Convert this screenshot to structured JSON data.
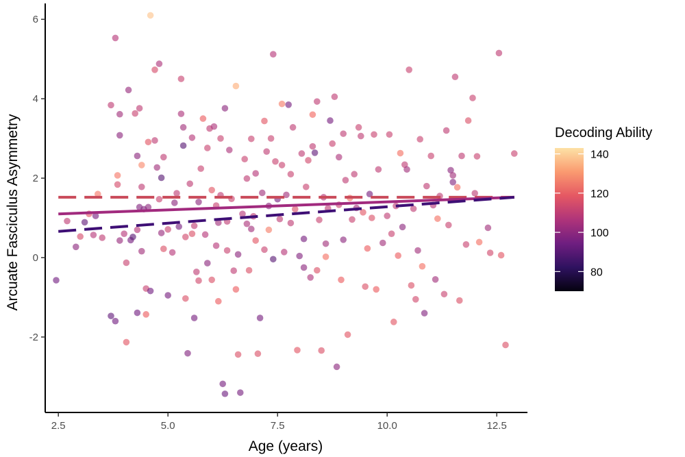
{
  "chart_data": {
    "type": "scatter",
    "xlabel": "Age (years)",
    "ylabel": "Arcuate Fasciculus Asymmetry",
    "xlim": [
      2.2,
      13.2
    ],
    "ylim": [
      -3.9,
      6.4
    ],
    "x_ticks": [
      2.5,
      5.0,
      7.5,
      10.0,
      12.5
    ],
    "x_tick_labels": [
      "2.5",
      "5.0",
      "7.5",
      "10.0",
      "12.5"
    ],
    "y_ticks": [
      -2,
      0,
      2,
      4,
      6
    ],
    "y_tick_labels": [
      "-2",
      "0",
      "2",
      "4",
      "6"
    ],
    "grid": false,
    "legend": {
      "title": "Decoding Ability",
      "placement": "right",
      "range": [
        70,
        143
      ],
      "ticks": [
        80,
        100,
        120,
        140
      ],
      "tick_labels": [
        "80",
        "100",
        "120",
        "140"
      ]
    },
    "colors": {
      "colormap": [
        "#000004",
        "#2c115f",
        "#721f81",
        "#b73779",
        "#f1605d",
        "#feb078",
        "#fcfdbf"
      ],
      "line_solid": "#a12a7e",
      "line_dashed_high": "#c94a5a",
      "line_dashed_low": "#3e0f75"
    },
    "lines": [
      {
        "style": "dashed",
        "x": [
          2.5,
          12.9
        ],
        "y": [
          1.52,
          1.52
        ],
        "color_value": 120
      },
      {
        "style": "solid",
        "x": [
          2.5,
          12.9
        ],
        "y": [
          1.1,
          1.52
        ],
        "color_value": 105
      },
      {
        "style": "dashed",
        "x": [
          2.5,
          12.9
        ],
        "y": [
          0.66,
          1.52
        ],
        "color_value": 90
      }
    ],
    "points": [
      {
        "x": 2.45,
        "y": -0.57,
        "v": 95
      },
      {
        "x": 2.7,
        "y": 0.92,
        "v": 110
      },
      {
        "x": 2.9,
        "y": 0.27,
        "v": 100
      },
      {
        "x": 3.0,
        "y": 0.53,
        "v": 115
      },
      {
        "x": 3.1,
        "y": 0.89,
        "v": 92
      },
      {
        "x": 3.2,
        "y": 1.1,
        "v": 118
      },
      {
        "x": 3.3,
        "y": 0.57,
        "v": 108
      },
      {
        "x": 3.35,
        "y": 1.05,
        "v": 96
      },
      {
        "x": 3.4,
        "y": 1.6,
        "v": 125
      },
      {
        "x": 3.5,
        "y": 0.5,
        "v": 110
      },
      {
        "x": 3.7,
        "y": -1.47,
        "v": 92
      },
      {
        "x": 3.7,
        "y": 3.84,
        "v": 110
      },
      {
        "x": 3.8,
        "y": 5.53,
        "v": 108
      },
      {
        "x": 3.8,
        "y": -1.6,
        "v": 95
      },
      {
        "x": 3.85,
        "y": 2.07,
        "v": 125
      },
      {
        "x": 3.85,
        "y": 1.84,
        "v": 115
      },
      {
        "x": 3.9,
        "y": 3.61,
        "v": 104
      },
      {
        "x": 3.9,
        "y": 0.43,
        "v": 102
      },
      {
        "x": 3.9,
        "y": 3.08,
        "v": 100
      },
      {
        "x": 4.0,
        "y": 0.6,
        "v": 108
      },
      {
        "x": 4.05,
        "y": -2.13,
        "v": 118
      },
      {
        "x": 4.05,
        "y": -0.13,
        "v": 112
      },
      {
        "x": 4.1,
        "y": 4.22,
        "v": 102
      },
      {
        "x": 4.15,
        "y": 0.44,
        "v": 96
      },
      {
        "x": 4.2,
        "y": 0.52,
        "v": 90
      },
      {
        "x": 4.25,
        "y": 3.63,
        "v": 112
      },
      {
        "x": 4.3,
        "y": -1.39,
        "v": 95
      },
      {
        "x": 4.3,
        "y": 2.56,
        "v": 100
      },
      {
        "x": 4.3,
        "y": 0.7,
        "v": 108
      },
      {
        "x": 4.35,
        "y": 3.76,
        "v": 110
      },
      {
        "x": 4.35,
        "y": 1.27,
        "v": 98
      },
      {
        "x": 4.4,
        "y": 2.33,
        "v": 128
      },
      {
        "x": 4.4,
        "y": 0.16,
        "v": 104
      },
      {
        "x": 4.4,
        "y": 1.78,
        "v": 110
      },
      {
        "x": 4.45,
        "y": 1.22,
        "v": 98
      },
      {
        "x": 4.5,
        "y": -0.78,
        "v": 112
      },
      {
        "x": 4.5,
        "y": -1.43,
        "v": 120
      },
      {
        "x": 4.55,
        "y": 2.91,
        "v": 118
      },
      {
        "x": 4.55,
        "y": 1.27,
        "v": 100
      },
      {
        "x": 4.6,
        "y": -0.84,
        "v": 95
      },
      {
        "x": 4.6,
        "y": 6.1,
        "v": 138
      },
      {
        "x": 4.7,
        "y": 2.95,
        "v": 110
      },
      {
        "x": 4.7,
        "y": 4.73,
        "v": 115
      },
      {
        "x": 4.75,
        "y": 2.27,
        "v": 104
      },
      {
        "x": 4.8,
        "y": 4.88,
        "v": 106
      },
      {
        "x": 4.8,
        "y": 1.47,
        "v": 112
      },
      {
        "x": 4.85,
        "y": 2.01,
        "v": 90
      },
      {
        "x": 4.85,
        "y": 0.62,
        "v": 102
      },
      {
        "x": 4.9,
        "y": 0.22,
        "v": 116
      },
      {
        "x": 4.9,
        "y": 2.53,
        "v": 110
      },
      {
        "x": 5.0,
        "y": 0.71,
        "v": 112
      },
      {
        "x": 5.0,
        "y": -0.95,
        "v": 96
      },
      {
        "x": 5.1,
        "y": 0.13,
        "v": 108
      },
      {
        "x": 5.15,
        "y": 1.38,
        "v": 100
      },
      {
        "x": 5.2,
        "y": 1.62,
        "v": 110
      },
      {
        "x": 5.25,
        "y": 0.78,
        "v": 96
      },
      {
        "x": 5.3,
        "y": 4.5,
        "v": 112
      },
      {
        "x": 5.3,
        "y": 3.62,
        "v": 106
      },
      {
        "x": 5.35,
        "y": 3.28,
        "v": 104
      },
      {
        "x": 5.35,
        "y": 2.82,
        "v": 90
      },
      {
        "x": 5.4,
        "y": 0.52,
        "v": 114
      },
      {
        "x": 5.4,
        "y": -1.03,
        "v": 116
      },
      {
        "x": 5.45,
        "y": -2.41,
        "v": 98
      },
      {
        "x": 5.5,
        "y": 1.86,
        "v": 110
      },
      {
        "x": 5.55,
        "y": 3.02,
        "v": 108
      },
      {
        "x": 5.55,
        "y": 0.6,
        "v": 116
      },
      {
        "x": 5.6,
        "y": 0.8,
        "v": 110
      },
      {
        "x": 5.6,
        "y": -1.52,
        "v": 96
      },
      {
        "x": 5.65,
        "y": -0.36,
        "v": 110
      },
      {
        "x": 5.7,
        "y": 1.4,
        "v": 100
      },
      {
        "x": 5.7,
        "y": -0.58,
        "v": 114
      },
      {
        "x": 5.75,
        "y": 2.24,
        "v": 112
      },
      {
        "x": 5.8,
        "y": 3.5,
        "v": 120
      },
      {
        "x": 5.85,
        "y": 0.58,
        "v": 108
      },
      {
        "x": 5.9,
        "y": -0.14,
        "v": 100
      },
      {
        "x": 5.9,
        "y": 2.76,
        "v": 112
      },
      {
        "x": 5.95,
        "y": 3.25,
        "v": 110
      },
      {
        "x": 6.0,
        "y": 1.7,
        "v": 118
      },
      {
        "x": 6.0,
        "y": -0.56,
        "v": 116
      },
      {
        "x": 6.05,
        "y": 3.3,
        "v": 106
      },
      {
        "x": 6.1,
        "y": 1.31,
        "v": 112
      },
      {
        "x": 6.1,
        "y": 0.3,
        "v": 108
      },
      {
        "x": 6.15,
        "y": 0.88,
        "v": 104
      },
      {
        "x": 6.15,
        "y": -1.1,
        "v": 120
      },
      {
        "x": 6.2,
        "y": 1.57,
        "v": 110
      },
      {
        "x": 6.2,
        "y": 3.0,
        "v": 112
      },
      {
        "x": 6.25,
        "y": -3.18,
        "v": 96
      },
      {
        "x": 6.3,
        "y": -3.43,
        "v": 94
      },
      {
        "x": 6.3,
        "y": 3.76,
        "v": 100
      },
      {
        "x": 6.35,
        "y": 0.91,
        "v": 110
      },
      {
        "x": 6.35,
        "y": 0.18,
        "v": 112
      },
      {
        "x": 6.4,
        "y": 2.71,
        "v": 106
      },
      {
        "x": 6.45,
        "y": 1.48,
        "v": 112
      },
      {
        "x": 6.5,
        "y": -0.33,
        "v": 110
      },
      {
        "x": 6.55,
        "y": 4.32,
        "v": 134
      },
      {
        "x": 6.55,
        "y": -0.8,
        "v": 120
      },
      {
        "x": 6.6,
        "y": 0.08,
        "v": 100
      },
      {
        "x": 6.6,
        "y": -2.44,
        "v": 116
      },
      {
        "x": 6.65,
        "y": -3.4,
        "v": 96
      },
      {
        "x": 6.7,
        "y": 1.1,
        "v": 108
      },
      {
        "x": 6.75,
        "y": 2.48,
        "v": 112
      },
      {
        "x": 6.8,
        "y": 0.85,
        "v": 106
      },
      {
        "x": 6.8,
        "y": 1.99,
        "v": 110
      },
      {
        "x": 6.85,
        "y": -0.32,
        "v": 116
      },
      {
        "x": 6.9,
        "y": 0.72,
        "v": 104
      },
      {
        "x": 6.9,
        "y": 2.99,
        "v": 112
      },
      {
        "x": 6.95,
        "y": 1.04,
        "v": 110
      },
      {
        "x": 7.0,
        "y": 2.12,
        "v": 108
      },
      {
        "x": 7.0,
        "y": 0.43,
        "v": 118
      },
      {
        "x": 7.05,
        "y": -2.42,
        "v": 116
      },
      {
        "x": 7.1,
        "y": -1.52,
        "v": 96
      },
      {
        "x": 7.15,
        "y": 1.63,
        "v": 104
      },
      {
        "x": 7.2,
        "y": 3.44,
        "v": 118
      },
      {
        "x": 7.2,
        "y": 0.2,
        "v": 112
      },
      {
        "x": 7.25,
        "y": 2.67,
        "v": 110
      },
      {
        "x": 7.3,
        "y": 1.3,
        "v": 100
      },
      {
        "x": 7.3,
        "y": 0.7,
        "v": 126
      },
      {
        "x": 7.35,
        "y": 3.0,
        "v": 112
      },
      {
        "x": 7.4,
        "y": -0.04,
        "v": 90
      },
      {
        "x": 7.4,
        "y": 5.12,
        "v": 108
      },
      {
        "x": 7.45,
        "y": 2.42,
        "v": 112
      },
      {
        "x": 7.5,
        "y": 1.47,
        "v": 96
      },
      {
        "x": 7.55,
        "y": 0.97,
        "v": 110
      },
      {
        "x": 7.6,
        "y": 3.87,
        "v": 126
      },
      {
        "x": 7.6,
        "y": 2.33,
        "v": 112
      },
      {
        "x": 7.65,
        "y": 0.14,
        "v": 108
      },
      {
        "x": 7.7,
        "y": 1.58,
        "v": 104
      },
      {
        "x": 7.75,
        "y": 3.85,
        "v": 96
      },
      {
        "x": 7.8,
        "y": 0.87,
        "v": 110
      },
      {
        "x": 7.8,
        "y": 2.1,
        "v": 112
      },
      {
        "x": 7.85,
        "y": 3.28,
        "v": 110
      },
      {
        "x": 7.9,
        "y": 1.22,
        "v": 116
      },
      {
        "x": 7.95,
        "y": -2.33,
        "v": 118
      },
      {
        "x": 8.0,
        "y": 0.04,
        "v": 98
      },
      {
        "x": 8.05,
        "y": 2.62,
        "v": 110
      },
      {
        "x": 8.1,
        "y": 0.47,
        "v": 96
      },
      {
        "x": 8.1,
        "y": -0.25,
        "v": 100
      },
      {
        "x": 8.15,
        "y": 1.78,
        "v": 112
      },
      {
        "x": 8.2,
        "y": 2.45,
        "v": 114
      },
      {
        "x": 8.25,
        "y": -0.5,
        "v": 106
      },
      {
        "x": 8.3,
        "y": 3.6,
        "v": 122
      },
      {
        "x": 8.3,
        "y": 2.8,
        "v": 110
      },
      {
        "x": 8.35,
        "y": 2.64,
        "v": 92
      },
      {
        "x": 8.4,
        "y": 3.93,
        "v": 110
      },
      {
        "x": 8.4,
        "y": -0.32,
        "v": 116
      },
      {
        "x": 8.45,
        "y": 0.95,
        "v": 112
      },
      {
        "x": 8.5,
        "y": -2.34,
        "v": 116
      },
      {
        "x": 8.55,
        "y": 1.52,
        "v": 108
      },
      {
        "x": 8.6,
        "y": 0.02,
        "v": 124
      },
      {
        "x": 8.6,
        "y": 0.35,
        "v": 104
      },
      {
        "x": 8.65,
        "y": 1.24,
        "v": 110
      },
      {
        "x": 8.7,
        "y": 3.45,
        "v": 96
      },
      {
        "x": 8.75,
        "y": 2.87,
        "v": 112
      },
      {
        "x": 8.8,
        "y": 4.05,
        "v": 110
      },
      {
        "x": 8.85,
        "y": -2.75,
        "v": 100
      },
      {
        "x": 8.9,
        "y": 2.53,
        "v": 106
      },
      {
        "x": 8.9,
        "y": 1.33,
        "v": 112
      },
      {
        "x": 8.95,
        "y": -0.56,
        "v": 120
      },
      {
        "x": 9.0,
        "y": 3.12,
        "v": 110
      },
      {
        "x": 9.0,
        "y": 0.45,
        "v": 100
      },
      {
        "x": 9.05,
        "y": 1.95,
        "v": 110
      },
      {
        "x": 9.1,
        "y": -1.94,
        "v": 118
      },
      {
        "x": 9.15,
        "y": 1.5,
        "v": 124
      },
      {
        "x": 9.2,
        "y": 0.96,
        "v": 112
      },
      {
        "x": 9.25,
        "y": 2.1,
        "v": 110
      },
      {
        "x": 9.3,
        "y": 1.25,
        "v": 104
      },
      {
        "x": 9.35,
        "y": 3.28,
        "v": 112
      },
      {
        "x": 9.4,
        "y": 3.06,
        "v": 110
      },
      {
        "x": 9.45,
        "y": 1.14,
        "v": 118
      },
      {
        "x": 9.5,
        "y": -0.73,
        "v": 116
      },
      {
        "x": 9.55,
        "y": 0.23,
        "v": 120
      },
      {
        "x": 9.6,
        "y": 1.6,
        "v": 96
      },
      {
        "x": 9.65,
        "y": 1.0,
        "v": 116
      },
      {
        "x": 9.7,
        "y": 3.1,
        "v": 112
      },
      {
        "x": 9.75,
        "y": -0.8,
        "v": 120
      },
      {
        "x": 9.8,
        "y": 2.22,
        "v": 110
      },
      {
        "x": 9.9,
        "y": 0.37,
        "v": 104
      },
      {
        "x": 10.0,
        "y": 1.05,
        "v": 110
      },
      {
        "x": 10.05,
        "y": 3.1,
        "v": 112
      },
      {
        "x": 10.1,
        "y": 0.6,
        "v": 112
      },
      {
        "x": 10.15,
        "y": -1.62,
        "v": 118
      },
      {
        "x": 10.2,
        "y": 1.3,
        "v": 110
      },
      {
        "x": 10.25,
        "y": 0.05,
        "v": 120
      },
      {
        "x": 10.3,
        "y": 2.63,
        "v": 124
      },
      {
        "x": 10.35,
        "y": 0.77,
        "v": 100
      },
      {
        "x": 10.4,
        "y": 2.34,
        "v": 110
      },
      {
        "x": 10.45,
        "y": 2.22,
        "v": 104
      },
      {
        "x": 10.5,
        "y": 4.73,
        "v": 112
      },
      {
        "x": 10.55,
        "y": -0.7,
        "v": 116
      },
      {
        "x": 10.6,
        "y": 1.23,
        "v": 110
      },
      {
        "x": 10.65,
        "y": -1.05,
        "v": 114
      },
      {
        "x": 10.7,
        "y": 0.18,
        "v": 104
      },
      {
        "x": 10.75,
        "y": 2.98,
        "v": 112
      },
      {
        "x": 10.8,
        "y": -0.22,
        "v": 124
      },
      {
        "x": 10.85,
        "y": -1.4,
        "v": 98
      },
      {
        "x": 10.9,
        "y": 1.8,
        "v": 110
      },
      {
        "x": 11.0,
        "y": 2.56,
        "v": 112
      },
      {
        "x": 11.05,
        "y": 1.32,
        "v": 108
      },
      {
        "x": 11.1,
        "y": -0.55,
        "v": 104
      },
      {
        "x": 11.15,
        "y": 0.98,
        "v": 124
      },
      {
        "x": 11.2,
        "y": 1.55,
        "v": 110
      },
      {
        "x": 11.3,
        "y": -0.92,
        "v": 112
      },
      {
        "x": 11.35,
        "y": 3.2,
        "v": 110
      },
      {
        "x": 11.4,
        "y": 0.82,
        "v": 112
      },
      {
        "x": 11.45,
        "y": 2.2,
        "v": 100
      },
      {
        "x": 11.5,
        "y": 2.07,
        "v": 104
      },
      {
        "x": 11.5,
        "y": 1.9,
        "v": 98
      },
      {
        "x": 11.55,
        "y": 4.55,
        "v": 110
      },
      {
        "x": 11.6,
        "y": 1.77,
        "v": 124
      },
      {
        "x": 11.65,
        "y": -1.08,
        "v": 116
      },
      {
        "x": 11.7,
        "y": 2.56,
        "v": 110
      },
      {
        "x": 11.8,
        "y": 0.33,
        "v": 112
      },
      {
        "x": 11.85,
        "y": 3.45,
        "v": 116
      },
      {
        "x": 11.95,
        "y": 4.02,
        "v": 112
      },
      {
        "x": 12.0,
        "y": 1.62,
        "v": 110
      },
      {
        "x": 12.05,
        "y": 2.55,
        "v": 112
      },
      {
        "x": 12.1,
        "y": 0.39,
        "v": 124
      },
      {
        "x": 12.3,
        "y": 0.75,
        "v": 104
      },
      {
        "x": 12.35,
        "y": 0.12,
        "v": 114
      },
      {
        "x": 12.55,
        "y": 5.15,
        "v": 110
      },
      {
        "x": 12.6,
        "y": 0.06,
        "v": 118
      },
      {
        "x": 12.7,
        "y": -2.2,
        "v": 116
      },
      {
        "x": 12.9,
        "y": 2.62,
        "v": 112
      }
    ]
  }
}
